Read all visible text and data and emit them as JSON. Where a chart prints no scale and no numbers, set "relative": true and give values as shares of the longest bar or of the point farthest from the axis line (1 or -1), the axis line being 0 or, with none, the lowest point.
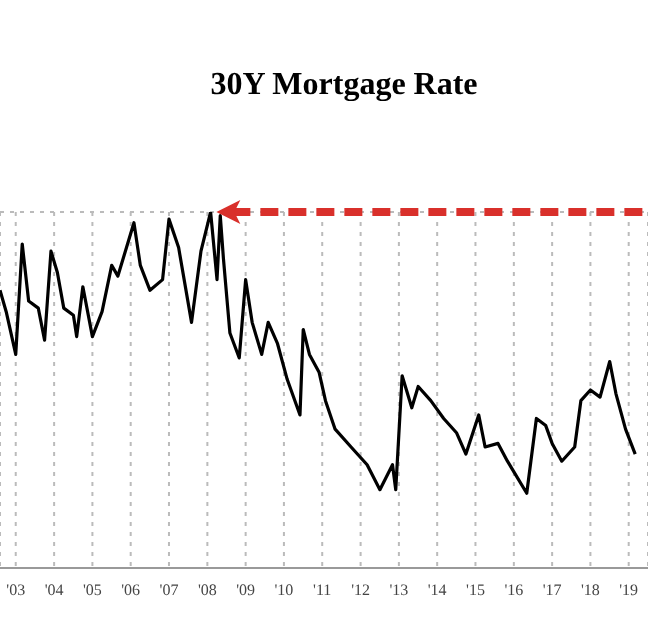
{
  "chart_data": {
    "type": "line",
    "title": "30Y Mortgage Rate",
    "relative": true,
    "grid": true,
    "xlim": [
      "2003-02",
      "2020-01"
    ],
    "xticks": [
      {
        "value": "2003-07",
        "label": "'03"
      },
      {
        "value": "2004-07",
        "label": "'04"
      },
      {
        "value": "2005-07",
        "label": "'05"
      },
      {
        "value": "2006-07",
        "label": "'06"
      },
      {
        "value": "2007-07",
        "label": "'07"
      },
      {
        "value": "2008-07",
        "label": "'08"
      },
      {
        "value": "2009-07",
        "label": "'09"
      },
      {
        "value": "2010-07",
        "label": "'10"
      },
      {
        "value": "2011-07",
        "label": "'11"
      },
      {
        "value": "2012-07",
        "label": "'12"
      },
      {
        "value": "2013-07",
        "label": "'13"
      },
      {
        "value": "2014-07",
        "label": "'14"
      },
      {
        "value": "2015-07",
        "label": "'15"
      },
      {
        "value": "2016-07",
        "label": "'16"
      },
      {
        "value": "2017-07",
        "label": "'17"
      },
      {
        "value": "2018-07",
        "label": "'18"
      },
      {
        "value": "2019-07",
        "label": "'19"
      }
    ],
    "ref_lines": [
      {
        "axis": "y",
        "value": 1,
        "color": "#d9302b",
        "line_style": "dashed"
      }
    ],
    "series": [
      {
        "color": "#000000",
        "x": [
          "2003-02",
          "2003-04",
          "2003-07",
          "2003-09",
          "2003-11",
          "2004-02",
          "2004-04",
          "2004-06",
          "2004-08",
          "2004-10",
          "2005-01",
          "2005-02",
          "2005-04",
          "2005-07",
          "2005-10",
          "2006-01",
          "2006-03",
          "2006-08",
          "2006-10",
          "2007-01",
          "2007-05",
          "2007-07",
          "2007-10",
          "2008-02",
          "2008-05",
          "2008-08",
          "2008-10",
          "2008-11",
          "2008-12",
          "2009-02",
          "2009-05",
          "2009-07",
          "2009-09",
          "2009-12",
          "2010-02",
          "2010-05",
          "2010-08",
          "2010-12",
          "2011-01",
          "2011-03",
          "2011-06",
          "2011-08",
          "2011-11",
          "2012-04",
          "2012-09",
          "2013-01",
          "2013-05",
          "2013-06",
          "2013-08",
          "2013-11",
          "2014-01",
          "2014-05",
          "2014-09",
          "2015-01",
          "2015-04",
          "2015-08",
          "2015-10",
          "2016-02",
          "2016-05",
          "2016-11",
          "2017-02",
          "2017-05",
          "2017-07",
          "2017-10",
          "2018-02",
          "2018-04",
          "2018-07",
          "2018-10",
          "2019-01",
          "2019-03",
          "2019-06",
          "2019-09"
        ],
        "values": [
          0.78,
          0.72,
          0.6,
          0.91,
          0.75,
          0.73,
          0.64,
          0.89,
          0.83,
          0.73,
          0.71,
          0.65,
          0.79,
          0.65,
          0.72,
          0.85,
          0.82,
          0.97,
          0.85,
          0.78,
          0.81,
          0.98,
          0.9,
          0.69,
          0.89,
          1.0,
          0.81,
          0.99,
          0.87,
          0.66,
          0.59,
          0.81,
          0.69,
          0.6,
          0.69,
          0.63,
          0.53,
          0.43,
          0.67,
          0.6,
          0.55,
          0.47,
          0.39,
          0.34,
          0.29,
          0.22,
          0.29,
          0.22,
          0.54,
          0.45,
          0.51,
          0.47,
          0.42,
          0.38,
          0.32,
          0.43,
          0.34,
          0.35,
          0.3,
          0.21,
          0.42,
          0.4,
          0.35,
          0.3,
          0.34,
          0.47,
          0.5,
          0.48,
          0.58,
          0.49,
          0.39,
          0.32
        ]
      }
    ]
  }
}
